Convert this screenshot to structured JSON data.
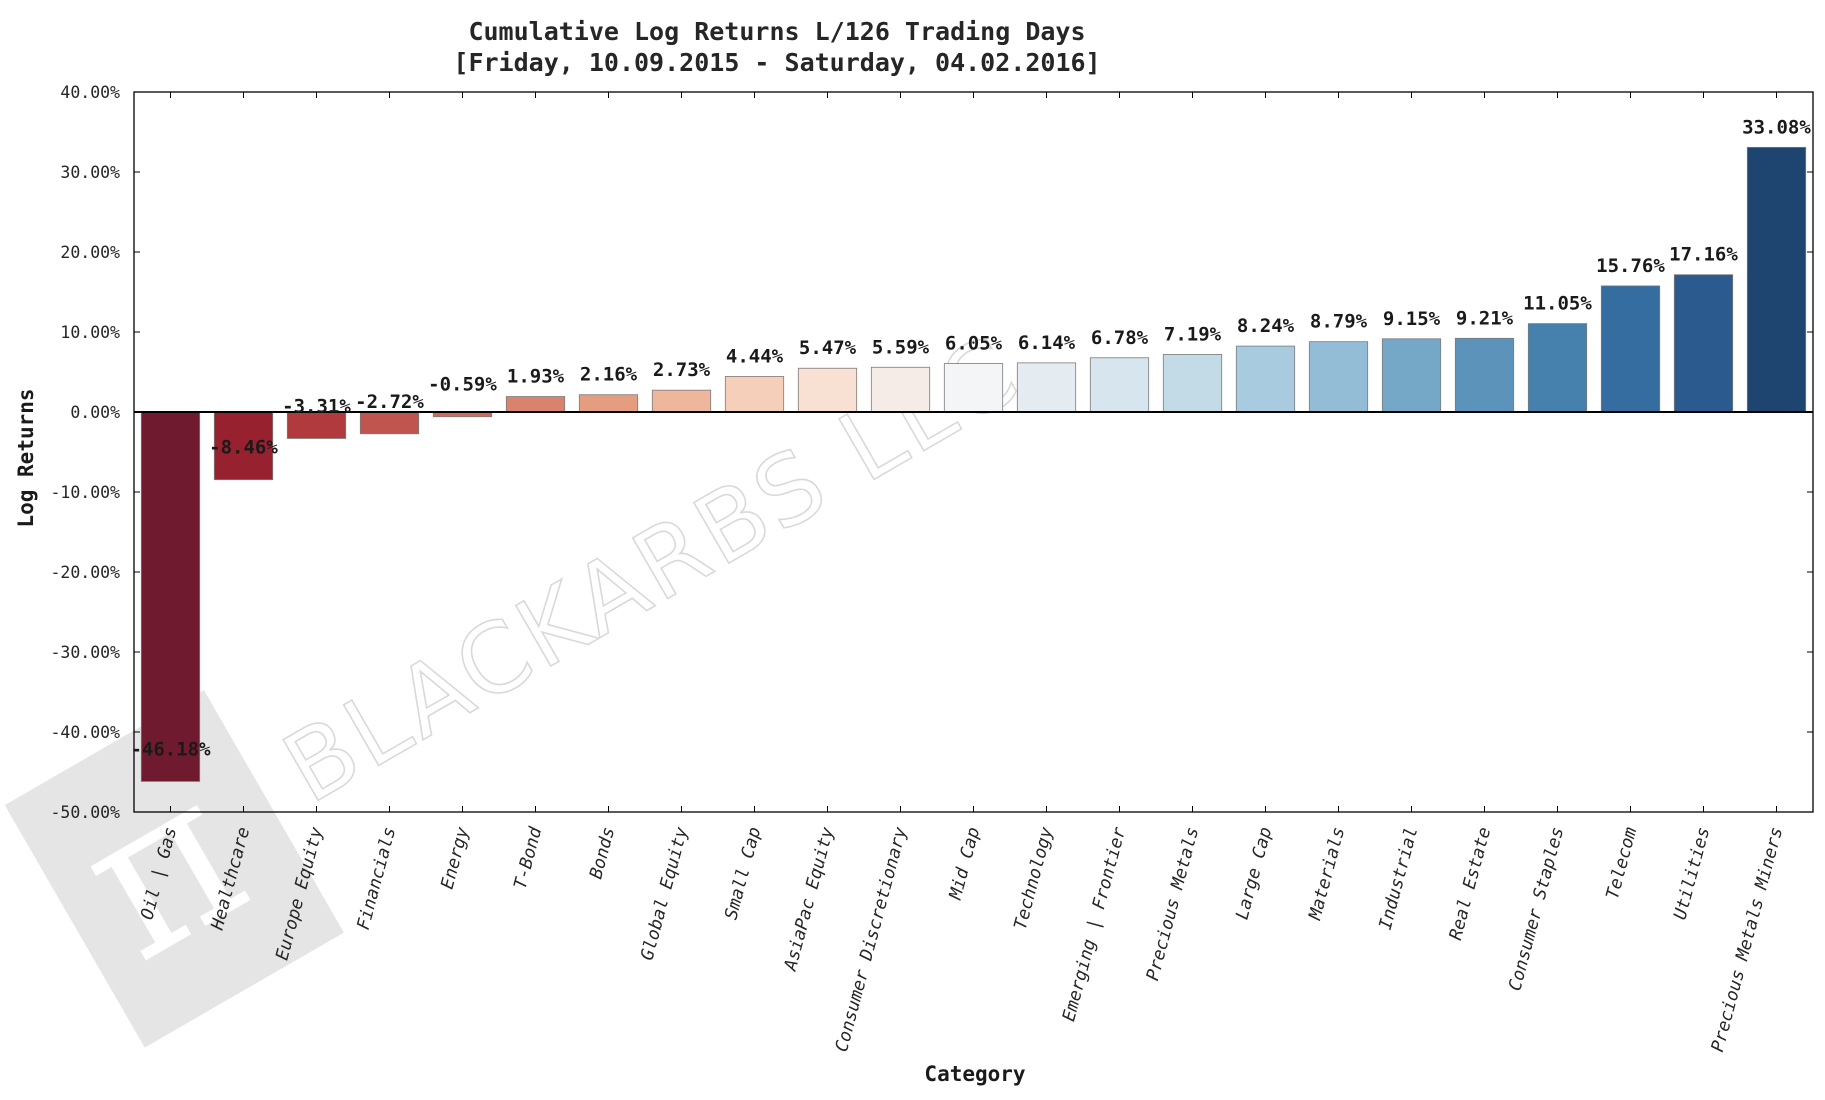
{
  "chart_data": {
    "type": "bar",
    "title": "Cumulative Log Returns L/126 Trading Days",
    "subtitle": "[Friday, 10.09.2015 - Saturday, 04.02.2016]",
    "xlabel": "Category",
    "ylabel": "Log Returns",
    "ylim": [
      -50,
      40
    ],
    "yticks": [
      40,
      30,
      20,
      10,
      0,
      -10,
      -20,
      -30,
      -40,
      -50
    ],
    "ytick_labels": [
      "40.00%",
      "30.00%",
      "20.00%",
      "10.00%",
      "0.00%",
      "-10.00%",
      "-20.00%",
      "-30.00%",
      "-40.00%",
      "-50.00%"
    ],
    "categories": [
      "Oil | Gas",
      "Healthcare",
      "Europe Equity",
      "Financials",
      "Energy",
      "T-Bond",
      "Bonds",
      "Global Equity",
      "Small Cap",
      "AsiaPac Equity",
      "Consumer Discretionary",
      "Mid Cap",
      "Technology",
      "Emerging | Frontier",
      "Precious Metals",
      "Large Cap",
      "Materials",
      "Industrial",
      "Real Estate",
      "Consumer Staples",
      "Telecom",
      "Utilities",
      "Precious Metals Miners"
    ],
    "values": [
      -46.18,
      -8.46,
      -3.31,
      -2.72,
      -0.59,
      1.93,
      2.16,
      2.73,
      4.44,
      5.47,
      5.59,
      6.05,
      6.14,
      6.78,
      7.19,
      8.24,
      8.79,
      9.15,
      9.21,
      11.05,
      15.76,
      17.16,
      33.08
    ],
    "value_labels": [
      "-46.18%",
      "-8.46%",
      "-3.31%",
      "-2.72%",
      "-0.59%",
      "1.93%",
      "2.16%",
      "2.73%",
      "4.44%",
      "5.47%",
      "5.59%",
      "6.05%",
      "6.14%",
      "6.78%",
      "7.19%",
      "8.24%",
      "8.79%",
      "9.15%",
      "9.21%",
      "11.05%",
      "15.76%",
      "17.16%",
      "33.08%"
    ],
    "colors": [
      "#6f1a2e",
      "#98212f",
      "#b03a3e",
      "#c0544f",
      "#ce6b5a",
      "#d9826e",
      "#e59d80",
      "#eeb69b",
      "#f5cfb9",
      "#f8e0d2",
      "#f6ece7",
      "#f3f5f6",
      "#e4ecf1",
      "#d6e5ee",
      "#c3dae7",
      "#a9cbe0",
      "#93bcd6",
      "#75a7c7",
      "#5b93bb",
      "#4680ad",
      "#356da1",
      "#2a5a8e",
      "#1e4570"
    ],
    "grid": false,
    "watermark": "BLACKARBS LLC"
  }
}
